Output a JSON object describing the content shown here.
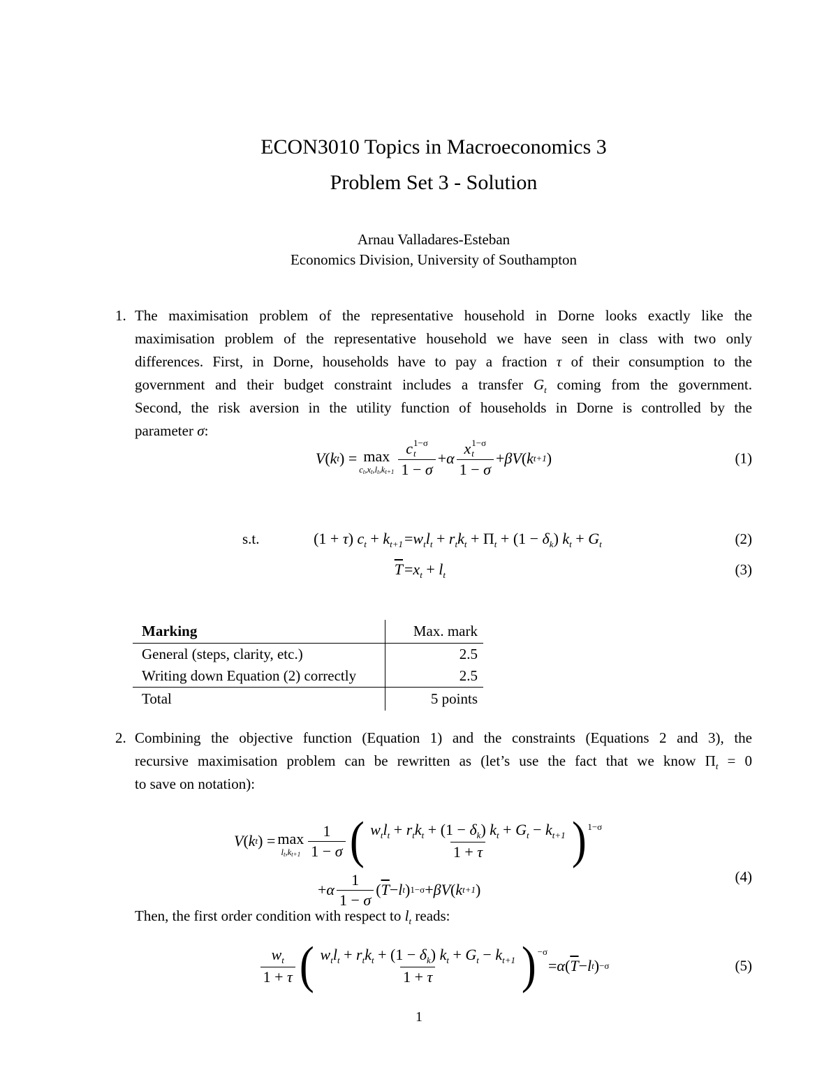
{
  "title": {
    "line1": "ECON3010 Topics in Macroeconomics 3",
    "line2": "Problem Set 3 - Solution"
  },
  "author": {
    "name": "Arnau Valladares-Esteban",
    "affiliation": "Economics Division, University of Southampton"
  },
  "page": {
    "number": "1"
  },
  "item1": {
    "marker": "1.",
    "lines": [
      [
        [
          "r",
          "The maximisation problem of the representative household in Dorne looks exactly like the"
        ]
      ],
      [
        [
          "r",
          "maximisation problem of the representative household we have seen in class with two only"
        ]
      ],
      [
        [
          "r",
          "differences. First, in Dorne, households have to pay a fraction "
        ],
        [
          "i",
          "τ"
        ],
        [
          "r",
          " of their consumption to the"
        ]
      ],
      [
        [
          "r",
          "government and their budget constraint includes a transfer "
        ],
        [
          "i",
          "G"
        ],
        [
          "b",
          "t"
        ],
        [
          "r",
          " coming from the government."
        ]
      ],
      [
        [
          "r",
          "Second, the risk aversion in the utility function of households in Dorne is controlled by the"
        ]
      ],
      [
        [
          "r",
          "parameter "
        ],
        [
          "i",
          "σ"
        ],
        [
          "r",
          ":"
        ]
      ]
    ]
  },
  "item2": {
    "marker": "2.",
    "lines": [
      [
        [
          "r",
          "Combining the objective function (Equation 1) and the constraints (Equations 2 and 3), the"
        ]
      ],
      [
        [
          "r",
          "recursive maximisation problem can be rewritten as (let’s use the fact that we know "
        ],
        [
          "r",
          "Π"
        ],
        [
          "b",
          "t"
        ],
        [
          "r",
          " = 0"
        ]
      ],
      [
        [
          "r",
          "to save on notation):"
        ]
      ]
    ]
  },
  "then_line": [
    [
      "r",
      "Then, the first order condition with respect to "
    ],
    [
      "i",
      "l"
    ],
    [
      "b",
      "t"
    ],
    [
      "r",
      " reads:"
    ]
  ],
  "eq1": {
    "label": "(1)",
    "content": [
      {
        "k": "r",
        "v": [
          [
            "i",
            "V"
          ],
          [
            "r",
            " ("
          ],
          [
            "i",
            "k"
          ],
          [
            "b",
            "t"
          ],
          [
            "r",
            ") = "
          ]
        ]
      },
      {
        "k": "u",
        "top": [
          [
            "r",
            "max"
          ]
        ],
        "bot": [
          [
            "i",
            "c"
          ],
          [
            "b",
            "t"
          ],
          [
            "r",
            ","
          ],
          [
            "i",
            "x"
          ],
          [
            "b",
            "t"
          ],
          [
            "r",
            ","
          ],
          [
            "i",
            "l"
          ],
          [
            "b",
            "t"
          ],
          [
            "r",
            ","
          ],
          [
            "i",
            "k"
          ],
          [
            "b",
            "t+1"
          ]
        ]
      },
      {
        "k": "f",
        "num": [
          {
            "k": "s",
            "base": [
              [
                "i",
                "c"
              ]
            ],
            "sup": [
              [
                "r",
                "1−σ"
              ]
            ],
            "sub": [
              [
                "i",
                "t"
              ]
            ]
          }
        ],
        "den": [
          {
            "k": "r",
            "v": [
              [
                "r",
                "1 − "
              ],
              [
                "i",
                "σ"
              ]
            ]
          }
        ]
      },
      {
        "k": "r",
        "v": [
          [
            "r",
            " + "
          ],
          [
            "i",
            "α"
          ]
        ]
      },
      {
        "k": "f",
        "num": [
          {
            "k": "s",
            "base": [
              [
                "i",
                "x"
              ]
            ],
            "sup": [
              [
                "r",
                "1−σ"
              ]
            ],
            "sub": [
              [
                "i",
                "t"
              ]
            ]
          }
        ],
        "den": [
          {
            "k": "r",
            "v": [
              [
                "r",
                "1 − "
              ],
              [
                "i",
                "σ"
              ]
            ]
          }
        ]
      },
      {
        "k": "r",
        "v": [
          [
            "r",
            " + "
          ],
          [
            "i",
            "βV"
          ],
          [
            "r",
            " ("
          ],
          [
            "i",
            "k"
          ],
          [
            "b",
            "t+1"
          ],
          [
            "r",
            ")"
          ]
        ]
      }
    ]
  },
  "eq2": {
    "label": "(2)",
    "st": "s.t.",
    "lhs": [
      [
        "r",
        "(1 + "
      ],
      [
        "i",
        "τ"
      ],
      [
        "r",
        ") "
      ],
      [
        "i",
        "c"
      ],
      [
        "b",
        "t"
      ],
      [
        "r",
        " + "
      ],
      [
        "i",
        "k"
      ],
      [
        "b",
        "t+1"
      ]
    ],
    "rhs": [
      [
        "r",
        "="
      ],
      [
        "i",
        "w"
      ],
      [
        "b",
        "t"
      ],
      [
        "i",
        "l"
      ],
      [
        "b",
        "t"
      ],
      [
        "r",
        " + "
      ],
      [
        "i",
        "r"
      ],
      [
        "b",
        "t"
      ],
      [
        "i",
        "k"
      ],
      [
        "b",
        "t"
      ],
      [
        "r",
        " + Π"
      ],
      [
        "b",
        "t"
      ],
      [
        "r",
        " + (1 − "
      ],
      [
        "i",
        "δ"
      ],
      [
        "b",
        "k"
      ],
      [
        "r",
        ") "
      ],
      [
        "i",
        "k"
      ],
      [
        "b",
        "t"
      ],
      [
        "r",
        " + "
      ],
      [
        "i",
        "G"
      ],
      [
        "b",
        "t"
      ]
    ]
  },
  "eq3": {
    "label": "(3)",
    "lhs": [
      [
        "o",
        "T"
      ]
    ],
    "rhs": [
      [
        "r",
        "="
      ],
      [
        "i",
        "x"
      ],
      [
        "b",
        "t"
      ],
      [
        "r",
        " + "
      ],
      [
        "i",
        "l"
      ],
      [
        "b",
        "t"
      ]
    ]
  },
  "eq4": {
    "label": "(4)",
    "line1": [
      {
        "k": "r",
        "v": [
          [
            "i",
            "V"
          ],
          [
            "r",
            " ("
          ],
          [
            "i",
            "k"
          ],
          [
            "b",
            "t"
          ],
          [
            "r",
            ") = "
          ]
        ]
      },
      {
        "k": "u",
        "top": [
          [
            "r",
            "max"
          ]
        ],
        "bot": [
          [
            "i",
            "l"
          ],
          [
            "b",
            "t"
          ],
          [
            "r",
            ","
          ],
          [
            "i",
            "k"
          ],
          [
            "b",
            "t+1"
          ]
        ]
      },
      {
        "k": "f",
        "num": [
          {
            "k": "r",
            "v": [
              [
                "r",
                "1"
              ]
            ]
          }
        ],
        "den": [
          {
            "k": "r",
            "v": [
              [
                "r",
                "1 − "
              ],
              [
                "i",
                "σ"
              ]
            ]
          }
        ]
      },
      {
        "k": "g",
        "sup": [
          [
            "r",
            "1−σ"
          ]
        ],
        "body": [
          {
            "k": "f",
            "num": [
              {
                "k": "r",
                "v": [
                  [
                    "i",
                    "w"
                  ],
                  [
                    "b",
                    "t"
                  ],
                  [
                    "i",
                    "l"
                  ],
                  [
                    "b",
                    "t"
                  ],
                  [
                    "r",
                    " + "
                  ],
                  [
                    "i",
                    "r"
                  ],
                  [
                    "b",
                    "t"
                  ],
                  [
                    "i",
                    "k"
                  ],
                  [
                    "b",
                    "t"
                  ],
                  [
                    "r",
                    " + (1 − "
                  ],
                  [
                    "i",
                    "δ"
                  ],
                  [
                    "b",
                    "k"
                  ],
                  [
                    "r",
                    ") "
                  ],
                  [
                    "i",
                    "k"
                  ],
                  [
                    "b",
                    "t"
                  ],
                  [
                    "r",
                    " + "
                  ],
                  [
                    "i",
                    "G"
                  ],
                  [
                    "b",
                    "t"
                  ],
                  [
                    "r",
                    " − "
                  ],
                  [
                    "i",
                    "k"
                  ],
                  [
                    "b",
                    "t+1"
                  ]
                ]
              }
            ],
            "den": [
              {
                "k": "r",
                "v": [
                  [
                    "r",
                    "1 + "
                  ],
                  [
                    "i",
                    "τ"
                  ]
                ]
              }
            ]
          }
        ]
      }
    ],
    "line2": [
      {
        "k": "r",
        "v": [
          [
            "r",
            "+ "
          ],
          [
            "i",
            "α"
          ]
        ]
      },
      {
        "k": "f",
        "num": [
          {
            "k": "r",
            "v": [
              [
                "r",
                "1"
              ]
            ]
          }
        ],
        "den": [
          {
            "k": "r",
            "v": [
              [
                "r",
                "1 − "
              ],
              [
                "i",
                "σ"
              ]
            ]
          }
        ]
      },
      {
        "k": "r",
        "v": [
          [
            "r",
            "("
          ],
          [
            "o",
            "T"
          ],
          [
            "r",
            " − "
          ],
          [
            "i",
            "l"
          ],
          [
            "b",
            "t"
          ],
          [
            "r",
            ")"
          ],
          [
            "p",
            "1−σ"
          ],
          [
            "r",
            " + "
          ],
          [
            "i",
            "βV"
          ],
          [
            "r",
            " ("
          ],
          [
            "i",
            "k"
          ],
          [
            "b",
            "t+1"
          ],
          [
            "r",
            ")"
          ]
        ]
      }
    ]
  },
  "eq5": {
    "label": "(5)",
    "content": [
      {
        "k": "f",
        "num": [
          {
            "k": "r",
            "v": [
              [
                "i",
                "w"
              ],
              [
                "b",
                "t"
              ]
            ]
          }
        ],
        "den": [
          {
            "k": "r",
            "v": [
              [
                "r",
                "1 + "
              ],
              [
                "i",
                "τ"
              ]
            ]
          }
        ]
      },
      {
        "k": "g",
        "sup": [
          [
            "r",
            "−σ"
          ]
        ],
        "body": [
          {
            "k": "f",
            "num": [
              {
                "k": "r",
                "v": [
                  [
                    "i",
                    "w"
                  ],
                  [
                    "b",
                    "t"
                  ],
                  [
                    "i",
                    "l"
                  ],
                  [
                    "b",
                    "t"
                  ],
                  [
                    "r",
                    " + "
                  ],
                  [
                    "i",
                    "r"
                  ],
                  [
                    "b",
                    "t"
                  ],
                  [
                    "i",
                    "k"
                  ],
                  [
                    "b",
                    "t"
                  ],
                  [
                    "r",
                    " + (1 − "
                  ],
                  [
                    "i",
                    "δ"
                  ],
                  [
                    "b",
                    "k"
                  ],
                  [
                    "r",
                    ") "
                  ],
                  [
                    "i",
                    "k"
                  ],
                  [
                    "b",
                    "t"
                  ],
                  [
                    "r",
                    " + "
                  ],
                  [
                    "i",
                    "G"
                  ],
                  [
                    "b",
                    "t"
                  ],
                  [
                    "r",
                    " − "
                  ],
                  [
                    "i",
                    "k"
                  ],
                  [
                    "b",
                    "t+1"
                  ]
                ]
              }
            ],
            "den": [
              {
                "k": "r",
                "v": [
                  [
                    "r",
                    "1 + "
                  ],
                  [
                    "i",
                    "τ"
                  ]
                ]
              }
            ]
          }
        ]
      },
      {
        "k": "r",
        "v": [
          [
            "r",
            " = "
          ],
          [
            "i",
            "α"
          ],
          [
            "r",
            " ("
          ],
          [
            "o",
            "T"
          ],
          [
            "r",
            " − "
          ],
          [
            "i",
            "l"
          ],
          [
            "b",
            "t"
          ],
          [
            "r",
            ")"
          ],
          [
            "p",
            "−σ"
          ]
        ]
      }
    ]
  },
  "table": {
    "col1_header": "Marking",
    "col2_header": "Max. mark",
    "rows": [
      [
        "General (steps, clarity, etc.)",
        "2.5"
      ],
      [
        "Writing down Equation (2) correctly",
        "2.5"
      ],
      [
        "Total",
        "5 points"
      ]
    ]
  }
}
